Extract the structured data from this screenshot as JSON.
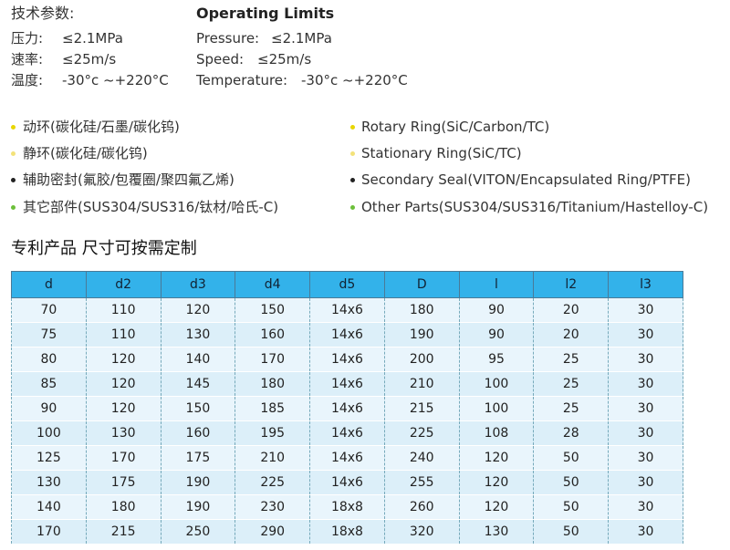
{
  "specs": {
    "title_cn": "技术参数:",
    "title_en": "Operating Limits",
    "cn": [
      {
        "label": "压力:",
        "value": "≤2.1MPa"
      },
      {
        "label": "速率:",
        "value": "≤25m/s"
      },
      {
        "label": "温度:",
        "value": "-30°c ~+220°C"
      }
    ],
    "en": [
      {
        "label": "Pressure:",
        "value": "≤2.1MPa"
      },
      {
        "label": "Speed:",
        "value": "≤25m/s"
      },
      {
        "label": "Temperature:",
        "value": "-30°c ~+220°C"
      }
    ]
  },
  "materials": [
    {
      "cn": "动环(碳化硅/石墨/碳化钨)",
      "en": "Rotary Ring(SiC/Carbon/TC)"
    },
    {
      "cn": "静环(碳化硅/碳化钨)",
      "en": "Stationary Ring(SiC/TC)"
    },
    {
      "cn": "辅助密封(氟胶/包覆圈/聚四氟乙烯)",
      "en": "Secondary Seal(VITON/Encapsulated Ring/PTFE)"
    },
    {
      "cn": "其它部件(SUS304/SUS316/钛材/哈氏-C)",
      "en": "Other Parts(SUS304/SUS316/Titanium/Hastelloy-C)"
    }
  ],
  "table": {
    "title": "专利产品  尺寸可按需定制",
    "header": [
      "d",
      "d2",
      "d3",
      "d4",
      "d5",
      "D",
      "l",
      "l2",
      "l3"
    ],
    "rows": [
      [
        70,
        110,
        120,
        150,
        "14x6",
        180,
        90,
        20,
        30
      ],
      [
        75,
        110,
        130,
        160,
        "14x6",
        190,
        90,
        20,
        30
      ],
      [
        80,
        120,
        140,
        170,
        "14x6",
        200,
        95,
        25,
        30
      ],
      [
        85,
        120,
        145,
        180,
        "14x6",
        210,
        100,
        25,
        30
      ],
      [
        90,
        120,
        150,
        185,
        "14x6",
        215,
        100,
        25,
        30
      ],
      [
        100,
        130,
        160,
        195,
        "14x6",
        225,
        108,
        28,
        30
      ],
      [
        125,
        170,
        175,
        210,
        "14x6",
        240,
        120,
        50,
        30
      ],
      [
        130,
        175,
        190,
        225,
        "14x6",
        255,
        120,
        50,
        30
      ],
      [
        140,
        180,
        190,
        230,
        "18x8",
        260,
        120,
        50,
        30
      ],
      [
        170,
        215,
        250,
        290,
        "18x8",
        320,
        130,
        50,
        30
      ]
    ]
  }
}
